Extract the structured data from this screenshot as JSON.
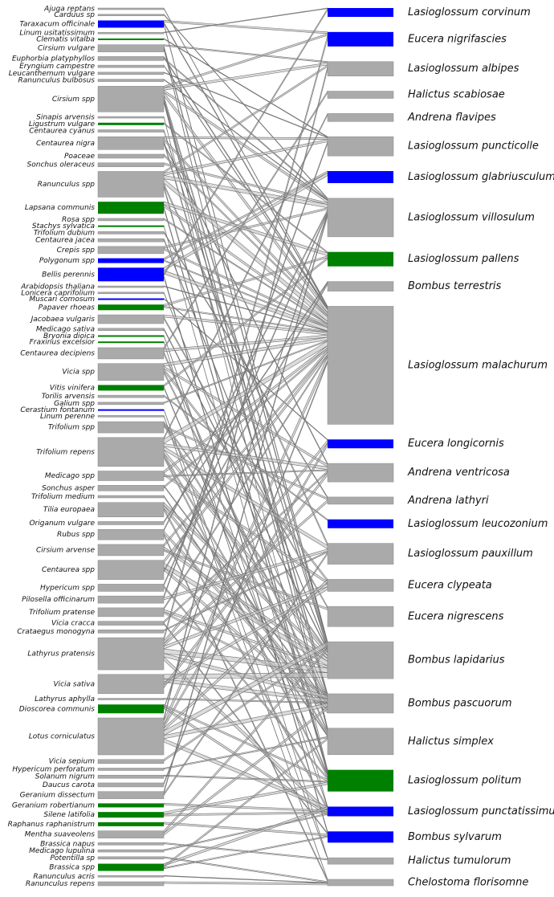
{
  "left": [
    {
      "label": "Ajuga reptans",
      "size": 2,
      "color": "#aaaaaa"
    },
    {
      "label": "Carduus sp",
      "size": 2,
      "color": "#aaaaaa"
    },
    {
      "label": "Taraxacum officinale",
      "size": 9,
      "color": "#0000ff"
    },
    {
      "label": "Linum usitatissimum",
      "size": 2,
      "color": "#aaaaaa"
    },
    {
      "label": "Clematis vitalba",
      "size": 2,
      "color": "#008000"
    },
    {
      "label": "Cirsium vulgare",
      "size": 9,
      "color": "#aaaaaa"
    },
    {
      "label": "Euphorbia platyphyllos",
      "size": 5,
      "color": "#aaaaaa"
    },
    {
      "label": "Eryngium campestre",
      "size": 3,
      "color": "#aaaaaa"
    },
    {
      "label": "Leucanthemum vulgare",
      "size": 3,
      "color": "#aaaaaa"
    },
    {
      "label": "Ranunculus bulbosus",
      "size": 3,
      "color": "#aaaaaa"
    },
    {
      "label": "Cirsium spp",
      "size": 32,
      "color": "#aaaaaa"
    },
    {
      "label": "Sinapis arvensis",
      "size": 2,
      "color": "#aaaaaa"
    },
    {
      "label": "Ligustrum vulgare",
      "size": 3,
      "color": "#008000"
    },
    {
      "label": "Centaurea cyanus",
      "size": 3,
      "color": "#aaaaaa"
    },
    {
      "label": "Centaurea nigra",
      "size": 16,
      "color": "#aaaaaa"
    },
    {
      "label": "Poaceae",
      "size": 5,
      "color": "#aaaaaa"
    },
    {
      "label": "Sonchus oleraceus",
      "size": 5,
      "color": "#aaaaaa"
    },
    {
      "label": "Ranunculus spp",
      "size": 32,
      "color": "#aaaaaa"
    },
    {
      "label": "Lapsana communis",
      "size": 15,
      "color": "#008000"
    },
    {
      "label": "Rosa spp",
      "size": 3,
      "color": "#aaaaaa"
    },
    {
      "label": "Stachys sylvatica",
      "size": 2,
      "color": "#008000"
    },
    {
      "label": "Trifolium dubium",
      "size": 3,
      "color": "#aaaaaa"
    },
    {
      "label": "Centaurea jacea",
      "size": 4,
      "color": "#aaaaaa"
    },
    {
      "label": "Crepis spp",
      "size": 9,
      "color": "#aaaaaa"
    },
    {
      "label": "Polygonum spp",
      "size": 6,
      "color": "#0000ff"
    },
    {
      "label": "Bellis perennis",
      "size": 17,
      "color": "#0000ff"
    },
    {
      "label": "Arabidopsis thaliana",
      "size": 2,
      "color": "#aaaaaa"
    },
    {
      "label": "Lonicera caprifolium",
      "size": 2,
      "color": "#aaaaaa"
    },
    {
      "label": "Muscari comosum",
      "size": 2,
      "color": "#0000ff"
    },
    {
      "label": "Papaver rhoeas",
      "size": 7,
      "color": "#008000"
    },
    {
      "label": "Jacobaea vulgaris",
      "size": 11,
      "color": "#aaaaaa"
    },
    {
      "label": "Medicago sativa",
      "size": 3,
      "color": "#aaaaaa"
    },
    {
      "label": "Bryonia dioica",
      "size": 2,
      "color": "#008000"
    },
    {
      "label": "Fraxinus excelsior",
      "size": 2,
      "color": "#008000"
    },
    {
      "label": "Centaurea decipiens",
      "size": 14,
      "color": "#aaaaaa"
    },
    {
      "label": "Vicia spp",
      "size": 21,
      "color": "#aaaaaa"
    },
    {
      "label": "Vitis vinifera",
      "size": 7,
      "color": "#008000"
    },
    {
      "label": "Torilis arvensis",
      "size": 3,
      "color": "#aaaaaa"
    },
    {
      "label": "Galium spp",
      "size": 3,
      "color": "#aaaaaa"
    },
    {
      "label": "Cerastium fontanum",
      "size": 2,
      "color": "#0000ff"
    },
    {
      "label": "Linum perenne",
      "size": 2,
      "color": "#aaaaaa"
    },
    {
      "label": "Trifolium spp",
      "size": 14,
      "color": "#aaaaaa"
    },
    {
      "label": "Trifolium repens",
      "size": 36,
      "color": "#aaaaaa"
    },
    {
      "label": "Medicago spp",
      "size": 12,
      "color": "#aaaaaa"
    },
    {
      "label": "Sonchus asper",
      "size": 7,
      "color": "#aaaaaa"
    },
    {
      "label": "Trifolium medium",
      "size": 3,
      "color": "#aaaaaa"
    },
    {
      "label": "Tilia europaea",
      "size": 18,
      "color": "#aaaaaa"
    },
    {
      "label": "Origanum vulgare",
      "size": 4,
      "color": "#aaaaaa"
    },
    {
      "label": "Rubus spp",
      "size": 13,
      "color": "#aaaaaa"
    },
    {
      "label": "Cirsium arvense",
      "size": 14,
      "color": "#aaaaaa"
    },
    {
      "label": "Centaurea spp",
      "size": 24,
      "color": "#aaaaaa"
    },
    {
      "label": "Hypericum spp",
      "size": 9,
      "color": "#aaaaaa"
    },
    {
      "label": "Pilosella officinarum",
      "size": 9,
      "color": "#aaaaaa"
    },
    {
      "label": "Trifolium pratense",
      "size": 11,
      "color": "#aaaaaa"
    },
    {
      "label": "Vicia cracca",
      "size": 5,
      "color": "#aaaaaa"
    },
    {
      "label": "Crataegus monogyna",
      "size": 4,
      "color": "#aaaaaa"
    },
    {
      "label": "Lathyrus pratensis",
      "size": 40,
      "color": "#aaaaaa"
    },
    {
      "label": "Vicia sativa",
      "size": 24,
      "color": "#aaaaaa"
    },
    {
      "label": "Lathyrus aphylla",
      "size": 2,
      "color": "#aaaaaa"
    },
    {
      "label": "Dioscorea communis",
      "size": 11,
      "color": "#008000"
    },
    {
      "label": "Lotus corniculatus",
      "size": 46,
      "color": "#aaaaaa"
    },
    {
      "label": "Vicia sepium",
      "size": 5,
      "color": "#aaaaaa"
    },
    {
      "label": "Hypericum perforatum",
      "size": 3,
      "color": "#aaaaaa"
    },
    {
      "label": "Solanum nigrum",
      "size": 4,
      "color": "#aaaaaa"
    },
    {
      "label": "Daucus carota",
      "size": 5,
      "color": "#aaaaaa"
    },
    {
      "label": "Geranium dissectum",
      "size": 9,
      "color": "#aaaaaa"
    },
    {
      "label": "Geranium robertianum",
      "size": 5,
      "color": "#008000"
    },
    {
      "label": "Silene latifolia",
      "size": 7,
      "color": "#008000"
    },
    {
      "label": "Raphanus raphanistrum",
      "size": 5,
      "color": "#008000"
    },
    {
      "label": "Mentha suaveolens",
      "size": 9,
      "color": "#aaaaaa"
    },
    {
      "label": "Brassica napus",
      "size": 3,
      "color": "#aaaaaa"
    },
    {
      "label": "Medicago lupulina",
      "size": 3,
      "color": "#aaaaaa"
    },
    {
      "label": "Potentilla sp",
      "size": 3,
      "color": "#aaaaaa"
    },
    {
      "label": "Brassica spp",
      "size": 9,
      "color": "#008000"
    },
    {
      "label": "Ranunculus acris",
      "size": 2,
      "color": "#aaaaaa"
    },
    {
      "label": "Ranunculus repens",
      "size": 5,
      "color": "#aaaaaa"
    }
  ],
  "right": [
    {
      "label": "Lasioglossum corvinum",
      "size": 11,
      "color": "#0000ff"
    },
    {
      "label": "Eucera nigrifascies",
      "size": 18,
      "color": "#0000ff"
    },
    {
      "label": "Lasioglossum albipes",
      "size": 18,
      "color": "#aaaaaa"
    },
    {
      "label": "Halictus scabiosae",
      "size": 9,
      "color": "#aaaaaa"
    },
    {
      "label": "Andrena flavipes",
      "size": 10,
      "color": "#aaaaaa"
    },
    {
      "label": "Lasioglossum puncticolle",
      "size": 24,
      "color": "#aaaaaa"
    },
    {
      "label": "Lasioglossum glabriusculum",
      "size": 15,
      "color": "#0000ff"
    },
    {
      "label": "Lasioglossum villosulum",
      "size": 48,
      "color": "#aaaaaa"
    },
    {
      "label": "Lasioglossum pallens",
      "size": 18,
      "color": "#008000"
    },
    {
      "label": "Bombus terrestris",
      "size": 12,
      "color": "#aaaaaa"
    },
    {
      "label": "Lasioglossum malachurum",
      "size": 147,
      "color": "#aaaaaa"
    },
    {
      "label": "Eucera longicornis",
      "size": 11,
      "color": "#0000ff"
    },
    {
      "label": "Andrena ventricosa",
      "size": 23,
      "color": "#aaaaaa"
    },
    {
      "label": "Andrena lathyri",
      "size": 9,
      "color": "#aaaaaa"
    },
    {
      "label": "Lasioglossum leucozonium",
      "size": 11,
      "color": "#0000ff"
    },
    {
      "label": "Lasioglossum pauxillum",
      "size": 26,
      "color": "#aaaaaa"
    },
    {
      "label": "Eucera clypeata",
      "size": 15,
      "color": "#aaaaaa"
    },
    {
      "label": "Eucera nigrescens",
      "size": 25,
      "color": "#aaaaaa"
    },
    {
      "label": "Bombus lapidarius",
      "size": 46,
      "color": "#aaaaaa"
    },
    {
      "label": "Bombus pascuorum",
      "size": 24,
      "color": "#aaaaaa"
    },
    {
      "label": "Halictus simplex",
      "size": 33,
      "color": "#aaaaaa"
    },
    {
      "label": "Lasioglossum politum",
      "size": 27,
      "color": "#008000"
    },
    {
      "label": "Lasioglossum punctatissimum",
      "size": 12,
      "color": "#0000ff"
    },
    {
      "label": "Bombus sylvarum",
      "size": 14,
      "color": "#0000ff"
    },
    {
      "label": "Halictus tumulorum",
      "size": 8,
      "color": "#aaaaaa"
    },
    {
      "label": "Chelostoma florisomne",
      "size": 8,
      "color": "#aaaaaa"
    }
  ],
  "links": [
    [
      0,
      10,
      1
    ],
    [
      1,
      7,
      1
    ],
    [
      2,
      1,
      3
    ],
    [
      2,
      10,
      2
    ],
    [
      2,
      18,
      2
    ],
    [
      3,
      0,
      1
    ],
    [
      4,
      5,
      1
    ],
    [
      5,
      2,
      2
    ],
    [
      5,
      18,
      3
    ],
    [
      5,
      20,
      2
    ],
    [
      6,
      10,
      2
    ],
    [
      6,
      7,
      2
    ],
    [
      7,
      10,
      1
    ],
    [
      8,
      5,
      1
    ],
    [
      9,
      7,
      1
    ],
    [
      10,
      1,
      3
    ],
    [
      10,
      2,
      4
    ],
    [
      10,
      7,
      4
    ],
    [
      10,
      10,
      6
    ],
    [
      10,
      18,
      5
    ],
    [
      10,
      19,
      4
    ],
    [
      10,
      20,
      3
    ],
    [
      11,
      21,
      1
    ],
    [
      12,
      8,
      2
    ],
    [
      13,
      18,
      2
    ],
    [
      14,
      5,
      3
    ],
    [
      14,
      10,
      4
    ],
    [
      14,
      19,
      4
    ],
    [
      14,
      12,
      2
    ],
    [
      15,
      10,
      3
    ],
    [
      16,
      7,
      3
    ],
    [
      17,
      2,
      3
    ],
    [
      17,
      5,
      4
    ],
    [
      17,
      7,
      6
    ],
    [
      17,
      10,
      8
    ],
    [
      17,
      15,
      4
    ],
    [
      17,
      21,
      4
    ],
    [
      18,
      8,
      5
    ],
    [
      18,
      10,
      4
    ],
    [
      18,
      21,
      3
    ],
    [
      19,
      10,
      2
    ],
    [
      20,
      22,
      1
    ],
    [
      21,
      13,
      2
    ],
    [
      22,
      18,
      2
    ],
    [
      23,
      7,
      3
    ],
    [
      23,
      10,
      3
    ],
    [
      24,
      6,
      3
    ],
    [
      24,
      10,
      2
    ],
    [
      25,
      6,
      5
    ],
    [
      25,
      10,
      6
    ],
    [
      25,
      0,
      3
    ],
    [
      25,
      23,
      3
    ],
    [
      26,
      10,
      1
    ],
    [
      27,
      19,
      1
    ],
    [
      28,
      11,
      1
    ],
    [
      29,
      8,
      3
    ],
    [
      29,
      10,
      2
    ],
    [
      30,
      10,
      4
    ],
    [
      30,
      17,
      3
    ],
    [
      31,
      18,
      2
    ],
    [
      32,
      22,
      1
    ],
    [
      33,
      24,
      1
    ],
    [
      34,
      3,
      3
    ],
    [
      34,
      10,
      4
    ],
    [
      34,
      20,
      4
    ],
    [
      35,
      10,
      5
    ],
    [
      35,
      12,
      4
    ],
    [
      35,
      16,
      4
    ],
    [
      35,
      19,
      4
    ],
    [
      36,
      8,
      3
    ],
    [
      36,
      21,
      2
    ],
    [
      37,
      14,
      2
    ],
    [
      38,
      10,
      2
    ],
    [
      39,
      24,
      1
    ],
    [
      40,
      25,
      1
    ],
    [
      41,
      18,
      3
    ],
    [
      41,
      19,
      4
    ],
    [
      41,
      13,
      3
    ],
    [
      42,
      4,
      3
    ],
    [
      42,
      10,
      8
    ],
    [
      42,
      12,
      5
    ],
    [
      42,
      15,
      6
    ],
    [
      42,
      18,
      6
    ],
    [
      42,
      20,
      4
    ],
    [
      42,
      21,
      4
    ],
    [
      43,
      10,
      4
    ],
    [
      43,
      16,
      4
    ],
    [
      43,
      12,
      2
    ],
    [
      44,
      19,
      2
    ],
    [
      44,
      10,
      3
    ],
    [
      45,
      20,
      2
    ],
    [
      46,
      18,
      5
    ],
    [
      46,
      19,
      5
    ],
    [
      46,
      22,
      4
    ],
    [
      47,
      9,
      2
    ],
    [
      48,
      7,
      3
    ],
    [
      48,
      19,
      5
    ],
    [
      48,
      25,
      3
    ],
    [
      49,
      10,
      4
    ],
    [
      49,
      18,
      5
    ],
    [
      49,
      17,
      3
    ],
    [
      50,
      10,
      5
    ],
    [
      50,
      18,
      8
    ],
    [
      50,
      19,
      5
    ],
    [
      50,
      9,
      3
    ],
    [
      51,
      7,
      3
    ],
    [
      51,
      21,
      3
    ],
    [
      52,
      5,
      3
    ],
    [
      52,
      15,
      4
    ],
    [
      53,
      10,
      3
    ],
    [
      53,
      18,
      4
    ],
    [
      53,
      19,
      3
    ],
    [
      54,
      12,
      3
    ],
    [
      54,
      23,
      2
    ],
    [
      55,
      15,
      2
    ],
    [
      56,
      1,
      6
    ],
    [
      56,
      11,
      5
    ],
    [
      56,
      13,
      4
    ],
    [
      56,
      16,
      5
    ],
    [
      56,
      18,
      8
    ],
    [
      56,
      19,
      6
    ],
    [
      56,
      22,
      6
    ],
    [
      57,
      18,
      8
    ],
    [
      57,
      19,
      6
    ],
    [
      57,
      16,
      5
    ],
    [
      57,
      12,
      5
    ],
    [
      58,
      19,
      2
    ],
    [
      59,
      21,
      3
    ],
    [
      59,
      22,
      4
    ],
    [
      59,
      7,
      2
    ],
    [
      60,
      2,
      5
    ],
    [
      60,
      10,
      8
    ],
    [
      60,
      11,
      5
    ],
    [
      60,
      16,
      5
    ],
    [
      60,
      18,
      8
    ],
    [
      60,
      19,
      6
    ],
    [
      60,
      22,
      6
    ],
    [
      61,
      18,
      3
    ],
    [
      62,
      20,
      2
    ],
    [
      63,
      21,
      2
    ],
    [
      64,
      10,
      3
    ],
    [
      65,
      7,
      4
    ],
    [
      65,
      15,
      3
    ],
    [
      66,
      22,
      3
    ],
    [
      67,
      21,
      4
    ],
    [
      67,
      22,
      3
    ],
    [
      68,
      23,
      3
    ],
    [
      69,
      18,
      4
    ],
    [
      69,
      19,
      4
    ],
    [
      70,
      24,
      2
    ],
    [
      71,
      22,
      2
    ],
    [
      72,
      25,
      2
    ],
    [
      73,
      22,
      4
    ],
    [
      73,
      20,
      3
    ],
    [
      73,
      23,
      2
    ],
    [
      74,
      25,
      1
    ],
    [
      75,
      25,
      3
    ]
  ]
}
